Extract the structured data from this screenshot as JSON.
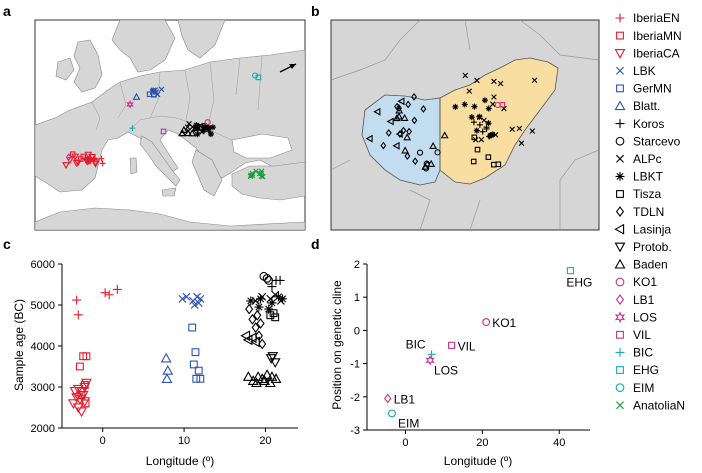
{
  "panels": {
    "a": {
      "letter": "a"
    },
    "b": {
      "letter": "b"
    },
    "c": {
      "letter": "c"
    },
    "d": {
      "letter": "d"
    }
  },
  "colors": {
    "red": "#e8192c",
    "blue": "#2b54b3",
    "pink": "#c8308a",
    "teal": "#16a9b7",
    "green": "#14a03a",
    "black": "#000000",
    "hungary_west": "#c2dcf0",
    "hungary_east": "#f8dea0",
    "land": "#d6d6d6",
    "sea": "#ffffff"
  },
  "legend": [
    {
      "label": "IberiaEN",
      "marker": "plus",
      "color": "red"
    },
    {
      "label": "IberiaMN",
      "marker": "square",
      "color": "red"
    },
    {
      "label": "IberiaCA",
      "marker": "tri-down",
      "color": "red"
    },
    {
      "label": "LBK",
      "marker": "x",
      "color": "blue"
    },
    {
      "label": "GerMN",
      "marker": "square",
      "color": "blue"
    },
    {
      "label": "Blatt.",
      "marker": "tri-up",
      "color": "blue"
    },
    {
      "label": "Koros",
      "marker": "plus",
      "color": "black"
    },
    {
      "label": "Starcevo",
      "marker": "circle",
      "color": "black"
    },
    {
      "label": "ALPc",
      "marker": "x",
      "color": "black"
    },
    {
      "label": "LBKT",
      "marker": "star",
      "color": "black"
    },
    {
      "label": "Tisza",
      "marker": "square",
      "color": "black"
    },
    {
      "label": "TDLN",
      "marker": "diamond",
      "color": "black"
    },
    {
      "label": "Lasinja",
      "marker": "tri-left",
      "color": "black"
    },
    {
      "label": "Protob.",
      "marker": "tri-down",
      "color": "black"
    },
    {
      "label": "Baden",
      "marker": "tri-up",
      "color": "black"
    },
    {
      "label": "KO1",
      "marker": "circle",
      "color": "pink"
    },
    {
      "label": "LB1",
      "marker": "diamond",
      "color": "pink"
    },
    {
      "label": "LOS",
      "marker": "star6",
      "color": "pink"
    },
    {
      "label": "VIL",
      "marker": "square",
      "color": "pink"
    },
    {
      "label": "BIC",
      "marker": "plus",
      "color": "teal"
    },
    {
      "label": "EHG",
      "marker": "square",
      "color": "teal"
    },
    {
      "label": "EIM",
      "marker": "circle",
      "color": "teal"
    },
    {
      "label": "AnatoliaN",
      "marker": "x",
      "color": "green"
    }
  ],
  "chart_data": [
    {
      "panel": "c",
      "type": "scatter",
      "xlabel": "Longitude (º)",
      "ylabel": "Sample age (BC)",
      "xlim": [
        -5,
        24
      ],
      "ylim": [
        2000,
        6000
      ],
      "xticks": [
        0,
        10,
        20
      ],
      "yticks": [
        2000,
        3000,
        4000,
        5000,
        6000
      ],
      "series": [
        {
          "name": "IberiaEN",
          "x": [
            -3.2,
            -3.0,
            0.3,
            0.8,
            1.8
          ],
          "y": [
            5120,
            4760,
            5300,
            5250,
            5380
          ]
        },
        {
          "name": "IberiaMN",
          "x": [
            -2.4,
            -2.0,
            -2.8,
            -2.2,
            -2.6,
            -2.1
          ],
          "y": [
            3750,
            3750,
            3500,
            3050,
            2800,
            2600
          ]
        },
        {
          "name": "IberiaCA",
          "x": [
            -3.4,
            -3.0,
            -2.6,
            -2.2,
            -2.0,
            -3.2,
            -2.8,
            -2.4,
            -3.6,
            -3.0,
            -2.6,
            -2.2
          ],
          "y": [
            2900,
            2950,
            2900,
            3000,
            3100,
            2750,
            2700,
            2800,
            2600,
            2500,
            2400,
            2650
          ]
        },
        {
          "name": "LBK",
          "x": [
            9.8,
            10.3,
            11.1,
            11.6,
            12.0,
            11.3,
            11.8
          ],
          "y": [
            5150,
            5200,
            5100,
            5200,
            5150,
            5000,
            5050
          ]
        },
        {
          "name": "GerMN",
          "x": [
            11.0,
            11.4,
            11.2,
            11.8,
            11.5,
            12.0
          ],
          "y": [
            4450,
            3850,
            3550,
            3400,
            3200,
            3200
          ]
        },
        {
          "name": "Blatt.",
          "x": [
            7.8,
            8.0,
            7.9
          ],
          "y": [
            3700,
            3400,
            3200
          ]
        },
        {
          "name": "Koros",
          "x": [
            20.8,
            21.3,
            21.8
          ],
          "y": [
            5450,
            5600,
            5600
          ]
        },
        {
          "name": "Starcevo",
          "x": [
            19.8,
            20.2,
            20.4
          ],
          "y": [
            5700,
            5650,
            5600
          ]
        },
        {
          "name": "ALPc",
          "x": [
            18.8,
            19.6,
            20.6,
            21.2,
            21.9
          ],
          "y": [
            5100,
            5200,
            5150,
            5250,
            5100
          ]
        },
        {
          "name": "LBKT",
          "x": [
            18.2,
            19.4,
            20.8,
            21.6,
            22.1,
            19.2,
            20.4
          ],
          "y": [
            5100,
            5150,
            5050,
            5200,
            5150,
            4950,
            4900
          ]
        },
        {
          "name": "Tisza",
          "x": [
            20.6,
            21.0,
            21.2
          ],
          "y": [
            4750,
            4800,
            4700
          ]
        },
        {
          "name": "TDLN",
          "x": [
            18.0,
            18.4,
            18.8,
            19.2,
            19.6,
            19.0,
            19.4
          ],
          "y": [
            4900,
            4650,
            4450,
            4250,
            4050,
            4750,
            4550
          ]
        },
        {
          "name": "Lasinja",
          "x": [
            17.6,
            17.9,
            18.4,
            18.8
          ],
          "y": [
            4250,
            4150,
            4200,
            4100
          ]
        },
        {
          "name": "Protob.",
          "x": [
            20.9,
            21.2,
            20.7
          ],
          "y": [
            3750,
            3600,
            3700
          ]
        },
        {
          "name": "Baden",
          "x": [
            17.9,
            18.5,
            19.1,
            19.6,
            20.2,
            20.8,
            21.3,
            18.9,
            19.9,
            20.6
          ],
          "y": [
            3250,
            3150,
            3250,
            3200,
            3300,
            3250,
            3200,
            3100,
            3150,
            3100
          ]
        }
      ]
    },
    {
      "panel": "d",
      "type": "scatter",
      "xlabel": "Longitude (º)",
      "ylabel": "Position on genetic cline",
      "xlim": [
        -10,
        48
      ],
      "ylim": [
        -3,
        2
      ],
      "xticks": [
        0,
        20,
        40
      ],
      "yticks": [
        -3,
        -2,
        -1,
        0,
        1,
        2
      ],
      "points": [
        {
          "label": "EHG",
          "x": 42.9,
          "y": 1.8
        },
        {
          "label": "KO1",
          "x": 21.0,
          "y": 0.25
        },
        {
          "label": "VIL",
          "x": 12.0,
          "y": -0.45
        },
        {
          "label": "BIC",
          "x": 6.8,
          "y": -0.72
        },
        {
          "label": "LOS",
          "x": 6.4,
          "y": -0.9
        },
        {
          "label": "LB1",
          "x": -4.6,
          "y": -2.05
        },
        {
          "label": "EIM",
          "x": -3.5,
          "y": -2.5
        }
      ]
    }
  ]
}
